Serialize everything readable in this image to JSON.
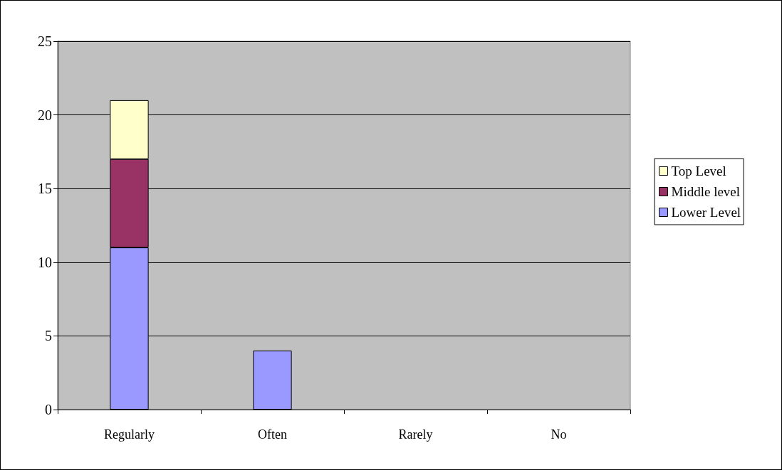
{
  "chart_data": {
    "type": "bar",
    "stacked": true,
    "categories": [
      "Regularly",
      "Often",
      "Rarely",
      "No"
    ],
    "series": [
      {
        "name": "Lower Level",
        "color": "#9999ff",
        "values": [
          11,
          4,
          null,
          null
        ]
      },
      {
        "name": "Middle level",
        "color": "#993366",
        "values": [
          6,
          null,
          null,
          null
        ]
      },
      {
        "name": "Top Level",
        "color": "#ffffcc",
        "values": [
          4,
          null,
          null,
          null
        ]
      }
    ],
    "ylim": [
      0,
      25
    ],
    "yticks": [
      0,
      5,
      10,
      15,
      20,
      25
    ],
    "grid": "y",
    "legend": "right"
  }
}
